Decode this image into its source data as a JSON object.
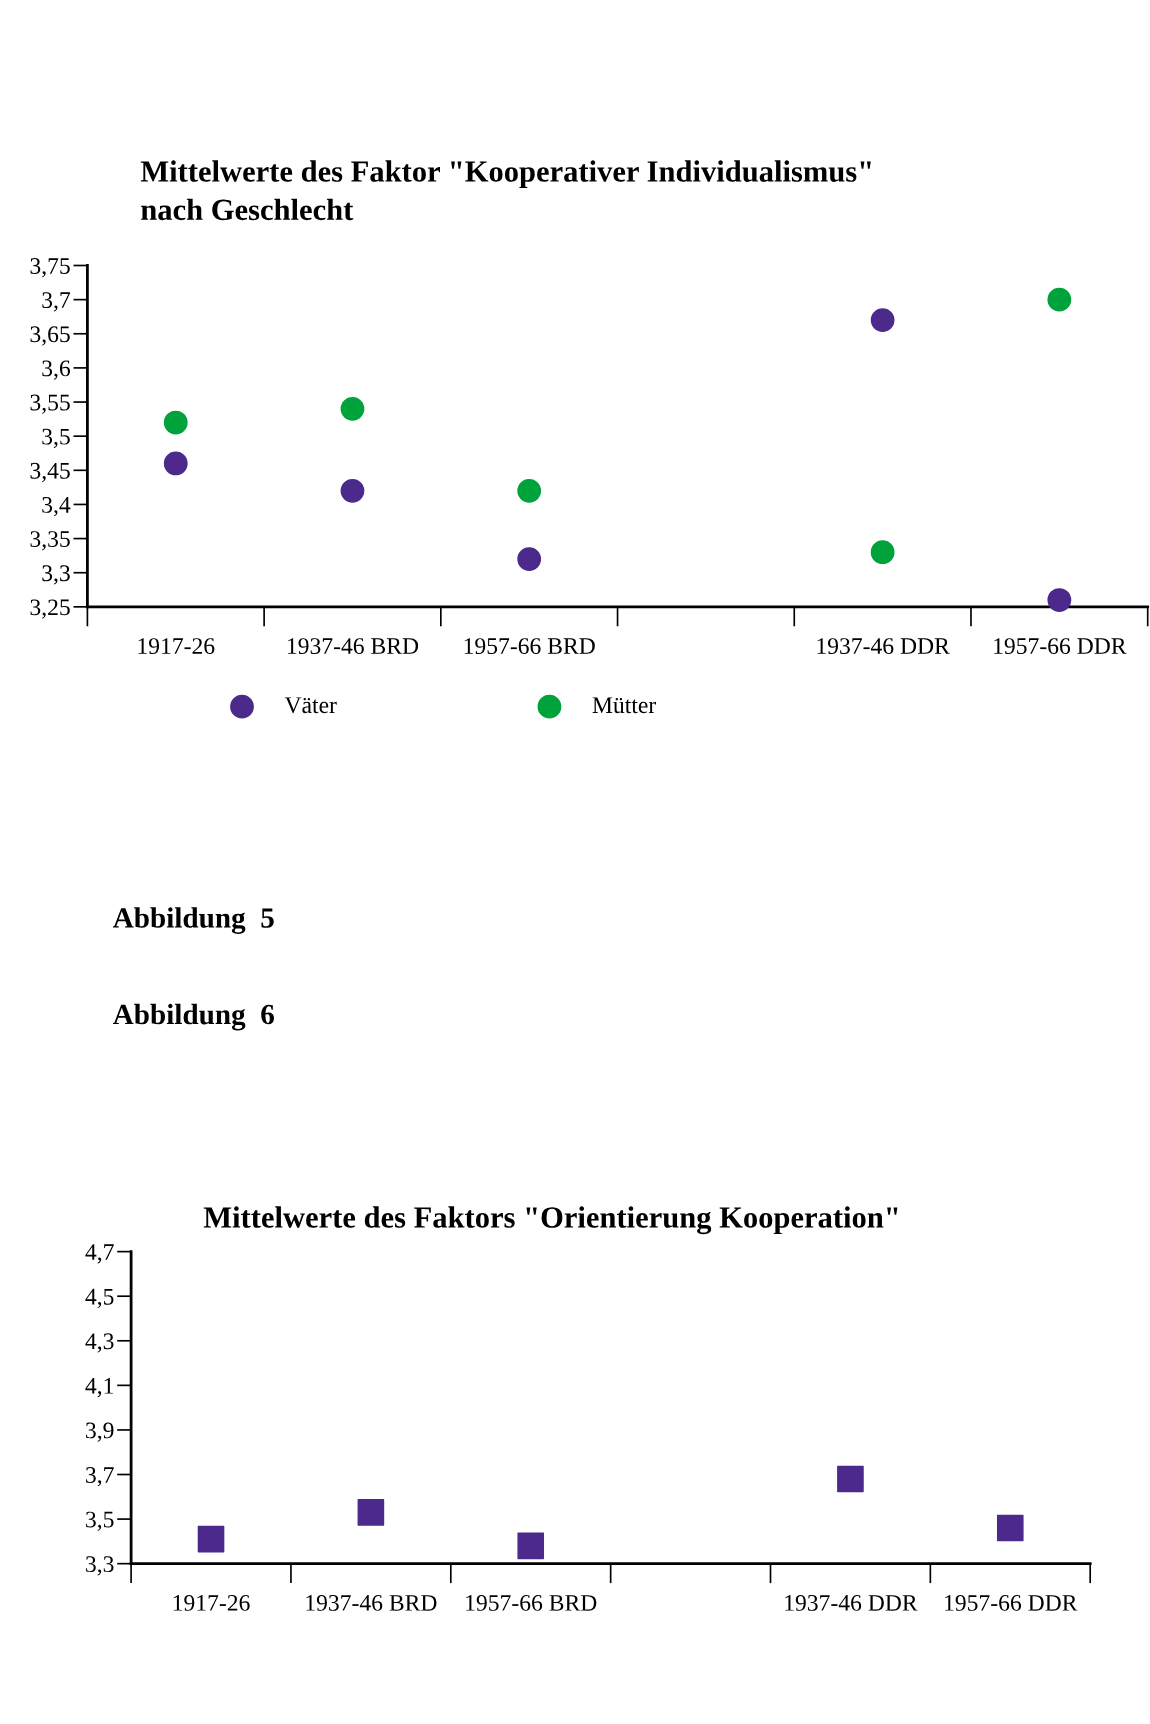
{
  "chart_data": [
    {
      "type": "scatter",
      "title": "Mittelwerte des Faktor \"Kooperativer Individualismus\"\nnach Geschlecht",
      "categories": [
        "1917-26",
        "1937-46 BRD",
        "1957-66 BRD",
        null,
        "1937-46 DDR",
        "1957-66 DDR"
      ],
      "series": [
        {
          "name": "Väter",
          "color": "#4b2a8c",
          "values": [
            3.46,
            3.42,
            3.32,
            null,
            3.67,
            3.26
          ]
        },
        {
          "name": "Mütter",
          "color": "#00a23c",
          "values": [
            3.52,
            3.54,
            3.42,
            null,
            3.33,
            3.7
          ]
        }
      ],
      "ylim": [
        3.25,
        3.75
      ],
      "yticks": [
        {
          "value": 3.25,
          "label": "3,25"
        },
        {
          "value": 3.3,
          "label": "3,3"
        },
        {
          "value": 3.35,
          "label": "3,35"
        },
        {
          "value": 3.4,
          "label": "3,4"
        },
        {
          "value": 3.45,
          "label": "3,45"
        },
        {
          "value": 3.5,
          "label": "3,5"
        },
        {
          "value": 3.55,
          "label": "3,55"
        },
        {
          "value": 3.6,
          "label": "3,6"
        },
        {
          "value": 3.65,
          "label": "3,65"
        },
        {
          "value": 3.7,
          "label": "3,7"
        },
        {
          "value": 3.75,
          "label": "3,75"
        }
      ],
      "marker": "circle",
      "legend": "bottom",
      "grid": false,
      "annotations": [
        "Abbildung  5"
      ]
    },
    {
      "type": "scatter",
      "title": "Mittelwerte des Faktors \"Orientierung Kooperation\"",
      "categories": [
        "1917-26",
        "1937-46 BRD",
        "1957-66 BRD",
        null,
        "1937-46 DDR",
        "1957-66 DDR"
      ],
      "series": [
        {
          "color": "#4b2a8c",
          "values": [
            3.41,
            3.53,
            3.38,
            null,
            3.68,
            3.46
          ]
        }
      ],
      "ylim": [
        3.3,
        4.7
      ],
      "yticks": [
        {
          "value": 3.3,
          "label": "3,3"
        },
        {
          "value": 3.5,
          "label": "3,5"
        },
        {
          "value": 3.7,
          "label": "3,7"
        },
        {
          "value": 3.9,
          "label": "3,9"
        },
        {
          "value": 4.1,
          "label": "4,1"
        },
        {
          "value": 4.3,
          "label": "4,3"
        },
        {
          "value": 4.5,
          "label": "4,5"
        },
        {
          "value": 4.7,
          "label": "4,7"
        }
      ],
      "marker": "square",
      "legend": false,
      "grid": false,
      "annotations": [
        "Abbildung  6"
      ]
    }
  ]
}
